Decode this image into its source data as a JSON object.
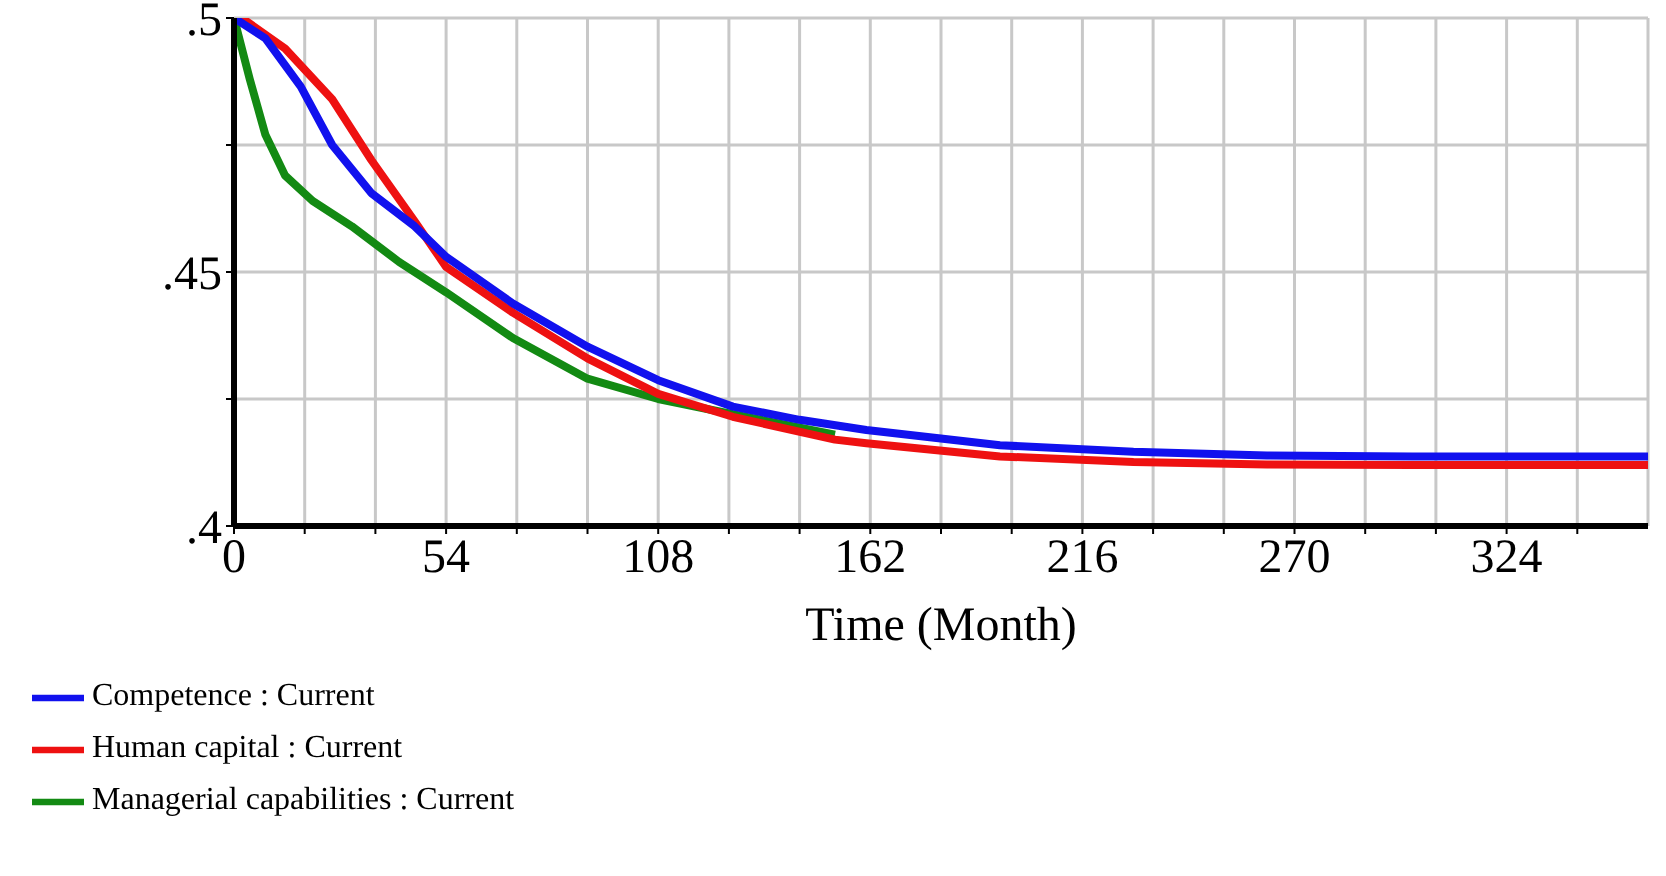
{
  "chart_data": {
    "type": "line",
    "xlabel": "Time (Month)",
    "xlim": [
      0,
      360
    ],
    "xticks": [
      0,
      {
        "value": 18,
        "label": null
      },
      54,
      {
        "value": 36,
        "label": null
      },
      {
        "value": 72,
        "label": null
      },
      {
        "value": 90,
        "label": null
      },
      108,
      {
        "value": 126,
        "label": null
      },
      {
        "value": 144,
        "label": null
      },
      162,
      {
        "value": 180,
        "label": null
      },
      {
        "value": 198,
        "label": null
      },
      216,
      {
        "value": 234,
        "label": null
      },
      {
        "value": 252,
        "label": null
      },
      270,
      {
        "value": 288,
        "label": null
      },
      {
        "value": 306,
        "label": null
      },
      324,
      {
        "value": 342,
        "label": null
      }
    ],
    "ylim": [
      0.4,
      0.5
    ],
    "yticks": [
      {
        "value": 0.4,
        "label": ".4"
      },
      {
        "value": 0.425,
        "label": null
      },
      {
        "value": 0.45,
        "label": ".45"
      },
      {
        "value": 0.475,
        "label": null
      },
      {
        "value": 0.5,
        "label": ".5"
      }
    ],
    "grid": true,
    "legend": "bottom",
    "marker": "none",
    "line_style": "solid",
    "series": [
      {
        "name": "Managerial capabilities : Current",
        "color": "#138a13",
        "x": [
          0,
          4,
          8,
          13,
          20,
          30,
          42,
          54,
          71,
          90,
          108,
          127,
          153
        ],
        "values": [
          0.5,
          0.488,
          0.477,
          0.469,
          0.464,
          0.459,
          0.452,
          0.446,
          0.437,
          0.429,
          0.425,
          0.422,
          0.418
        ]
      },
      {
        "name": "Human capital : Current",
        "color": "#ee1111",
        "x": [
          0,
          2,
          13,
          25,
          35,
          46,
          54,
          71,
          90,
          108,
          127,
          153,
          161,
          195,
          229,
          263,
          300,
          360
        ],
        "values": [
          0.5,
          0.5,
          0.494,
          0.484,
          0.472,
          0.46,
          0.451,
          0.442,
          0.433,
          0.426,
          0.4215,
          0.417,
          0.4163,
          0.4137,
          0.4126,
          0.4121,
          0.412,
          0.412
        ]
      },
      {
        "name": "Competence : Current",
        "color": "#1111ee",
        "x": [
          0,
          8,
          17,
          25,
          35,
          46,
          54,
          71,
          90,
          108,
          127,
          144,
          161,
          195,
          229,
          263,
          300,
          360
        ],
        "values": [
          0.5,
          0.496,
          0.4865,
          0.475,
          0.4655,
          0.459,
          0.453,
          0.4438,
          0.4353,
          0.4287,
          0.4235,
          0.4209,
          0.4189,
          0.4159,
          0.4146,
          0.4139,
          0.4137,
          0.4137
        ]
      }
    ]
  }
}
